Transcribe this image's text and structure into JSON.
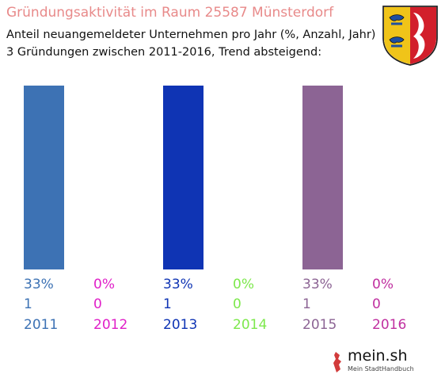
{
  "header": {
    "title": "Gründungsaktivität im Raum 25587 Münsterdorf",
    "subtitle_line1": "Anteil neuangemeldeter Unternehmen pro Jahr (%, Anzahl, Jahr)",
    "subtitle_line2": "3 Gründungen zwischen 2011-2016, Trend absteigend:"
  },
  "brand": {
    "name": "mein.sh",
    "tagline": "Mein StadtHandbuch"
  },
  "colors": {
    "title": "#e88a8a",
    "crest_blue": "#1f4fa0",
    "crest_red": "#d21f2b",
    "crest_gold": "#f0c419"
  },
  "chart_data": {
    "type": "bar",
    "categories": [
      "2011",
      "2012",
      "2013",
      "2014",
      "2015",
      "2016"
    ],
    "percent_labels": [
      "33%",
      "0%",
      "33%",
      "0%",
      "33%",
      "0%"
    ],
    "counts": [
      1,
      0,
      1,
      0,
      1,
      0
    ],
    "values": [
      33,
      0,
      33,
      0,
      33,
      0
    ],
    "colors": [
      "#3d72b4",
      "#e020c8",
      "#0f34b4",
      "#7de84c",
      "#8c6494",
      "#c030a0"
    ],
    "ylim": [
      0,
      33
    ],
    "grid": false,
    "legend": false
  }
}
